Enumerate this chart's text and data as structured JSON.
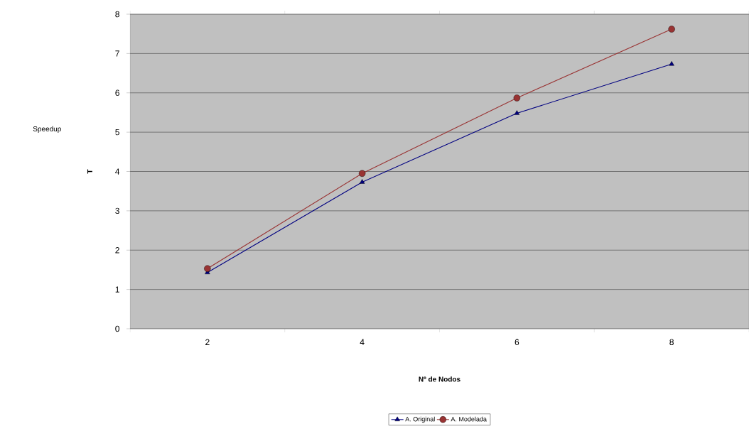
{
  "chart_data": {
    "type": "line",
    "title": "Speedup",
    "xlabel": "Nº de Nodos",
    "ylabel": "T",
    "categories": [
      "2",
      "4",
      "6",
      "8"
    ],
    "series": [
      {
        "name": "A. Original",
        "color": "#000080",
        "marker": "triangle",
        "values": [
          1.43,
          3.73,
          5.48,
          6.73
        ]
      },
      {
        "name": "A. Modelada",
        "color": "#993333",
        "marker": "circle",
        "values": [
          1.53,
          3.95,
          5.87,
          7.62
        ]
      }
    ],
    "ylim": [
      0,
      8
    ],
    "yticks": [
      0,
      1,
      2,
      3,
      4,
      5,
      6,
      7,
      8
    ],
    "grid": "y",
    "legend": "bottom",
    "line_style": "solid"
  }
}
